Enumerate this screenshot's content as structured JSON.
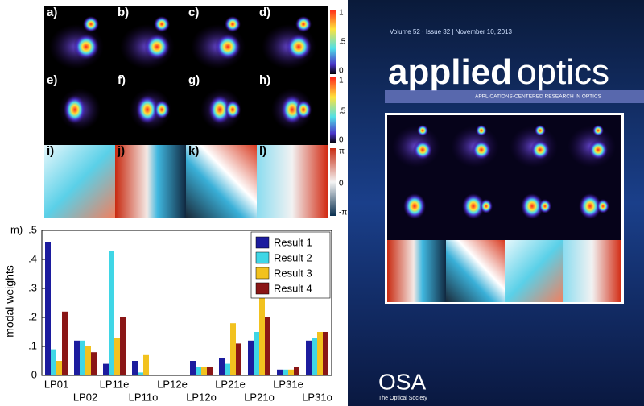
{
  "figure": {
    "labels": [
      "a)",
      "b)",
      "c)",
      "d)",
      "e)",
      "f)",
      "g)",
      "h)",
      "i)",
      "j)",
      "k)",
      "l)",
      "m)"
    ],
    "intensity_bar_ticks": [
      "1",
      ".5",
      "0"
    ],
    "phase_bar_ticks": [
      "π",
      "0",
      "-π"
    ]
  },
  "cover": {
    "issue_line": "Volume 52 · Issue 32 | November 10, 2013",
    "title_bold": "applied",
    "title_light": "optics",
    "tagline": "APPLICATIONS-CENTERED RESEARCH IN OPTICS",
    "publisher": "OSA",
    "publisher_name": "The Optical Society"
  },
  "chart_data": {
    "type": "bar",
    "ylabel": "modal weights",
    "categories": [
      "LP01",
      "LP02",
      "LP11e",
      "LP11o",
      "LP12e",
      "LP12o",
      "LP21e",
      "LP21o",
      "LP31e",
      "LP31o"
    ],
    "series": [
      {
        "name": "Result 1",
        "color": "#1c1c9e",
        "values": [
          0.46,
          0.12,
          0.04,
          0.05,
          0,
          0.05,
          0.06,
          0.12,
          0.02,
          0.12
        ]
      },
      {
        "name": "Result 2",
        "color": "#3fd6e6",
        "values": [
          0.09,
          0.12,
          0.43,
          0.01,
          0,
          0.03,
          0.04,
          0.15,
          0.02,
          0.13
        ]
      },
      {
        "name": "Result 3",
        "color": "#f2c21f",
        "values": [
          0.05,
          0.1,
          0.13,
          0.07,
          0,
          0.03,
          0.18,
          0.29,
          0.02,
          0.15
        ]
      },
      {
        "name": "Result 4",
        "color": "#8a1616",
        "values": [
          0.22,
          0.08,
          0.2,
          0,
          0,
          0.03,
          0.11,
          0.2,
          0.03,
          0.15
        ]
      }
    ],
    "ylim": [
      0,
      0.5
    ],
    "yticks": [
      0,
      {
        "value": 0.1,
        "label": ".1"
      },
      {
        "value": 0.2,
        "label": ".2"
      },
      {
        "value": 0.3,
        "label": ".3"
      },
      {
        "value": 0.4,
        "label": ".4"
      },
      {
        "value": 0.5,
        "label": ".5"
      }
    ],
    "legend": "upper right"
  }
}
